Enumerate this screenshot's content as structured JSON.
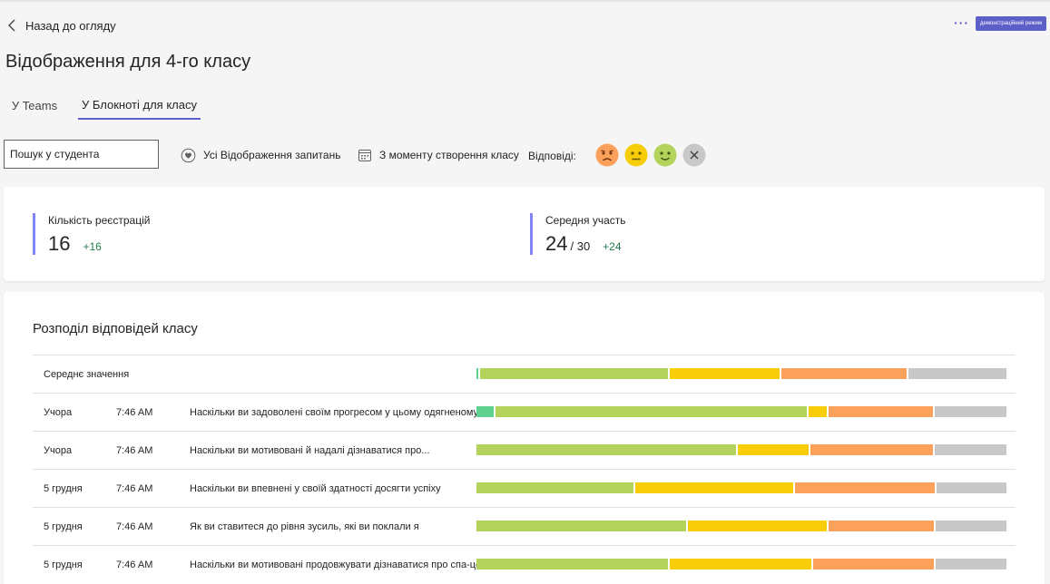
{
  "nav": {
    "back_label": "Назад до огляду",
    "more_label": "···",
    "demo_badge": "демонстраційний режим"
  },
  "page": {
    "title": "Відображення для 4-го класу"
  },
  "tabs": [
    {
      "label": "У Teams",
      "active": false
    },
    {
      "label": "У Блокноті для класу",
      "active": true
    }
  ],
  "filters": {
    "search_placeholder": "Пошук у студента",
    "questions_label": "Усі Відображення запитань",
    "date_label": "З моменту створення класу",
    "responses_label": "Відповіді:"
  },
  "responses_icons": [
    "sad-face-icon",
    "neutral-face-icon",
    "happy-face-icon",
    "clear-icon"
  ],
  "stats": {
    "registrations": {
      "label": "Кількість реєстрацій",
      "value": "16",
      "delta": "+16"
    },
    "participation": {
      "label": "Середня участь",
      "value": "24",
      "total": "/ 30",
      "delta": "+24"
    }
  },
  "distribution": {
    "title": "Розподіл відповідей класу",
    "average_label": "Середнє значення",
    "colors": {
      "excellent": "#5fd191",
      "good": "#b3d35c",
      "ok": "#f6cd08",
      "bad": "#fca15b",
      "none": "#c8c8c8"
    },
    "average": {
      "excellent": 0.3,
      "good": 36,
      "ok": 21,
      "bad": 24,
      "none": 18.7
    },
    "rows": [
      {
        "date": "Учора",
        "time": "7:46 AM",
        "question": "Наскільки ви задоволені своїм прогресом у цьому одягненому",
        "dist": {
          "excellent": 3.3,
          "good": 59.5,
          "ok": 3.5,
          "bad": 20,
          "none": 13.7
        }
      },
      {
        "date": "Учора",
        "time": "7:46 AM",
        "question": "Наскільки ви мотивовані й надалі дізнаватися про...",
        "dist": {
          "excellent": 0,
          "good": 49.5,
          "ok": 13.5,
          "bad": 23.3,
          "none": 13.7
        }
      },
      {
        "date": "5 грудня",
        "time": "7:46 AM",
        "question": "Наскільки ви впевнені у своїй здатності досягти успіху",
        "dist": {
          "excellent": 0,
          "good": 30,
          "ok": 30,
          "bad": 26.6,
          "none": 13.4
        }
      },
      {
        "date": "5 грудня",
        "time": "7:46 AM",
        "question": "Як ви ставитеся до рівня зусиль, які ви поклали я",
        "dist": {
          "excellent": 0,
          "good": 40,
          "ok": 26.5,
          "bad": 20,
          "none": 13.5
        }
      },
      {
        "date": "5 грудня",
        "time": "7:46 AM",
        "question": "Наскільки ви мотивовані продовжувати дізнаватися про спа-центр",
        "dist": {
          "excellent": 0,
          "good": 36.5,
          "ok": 27,
          "bad": 23,
          "none": 13.5
        }
      }
    ]
  }
}
